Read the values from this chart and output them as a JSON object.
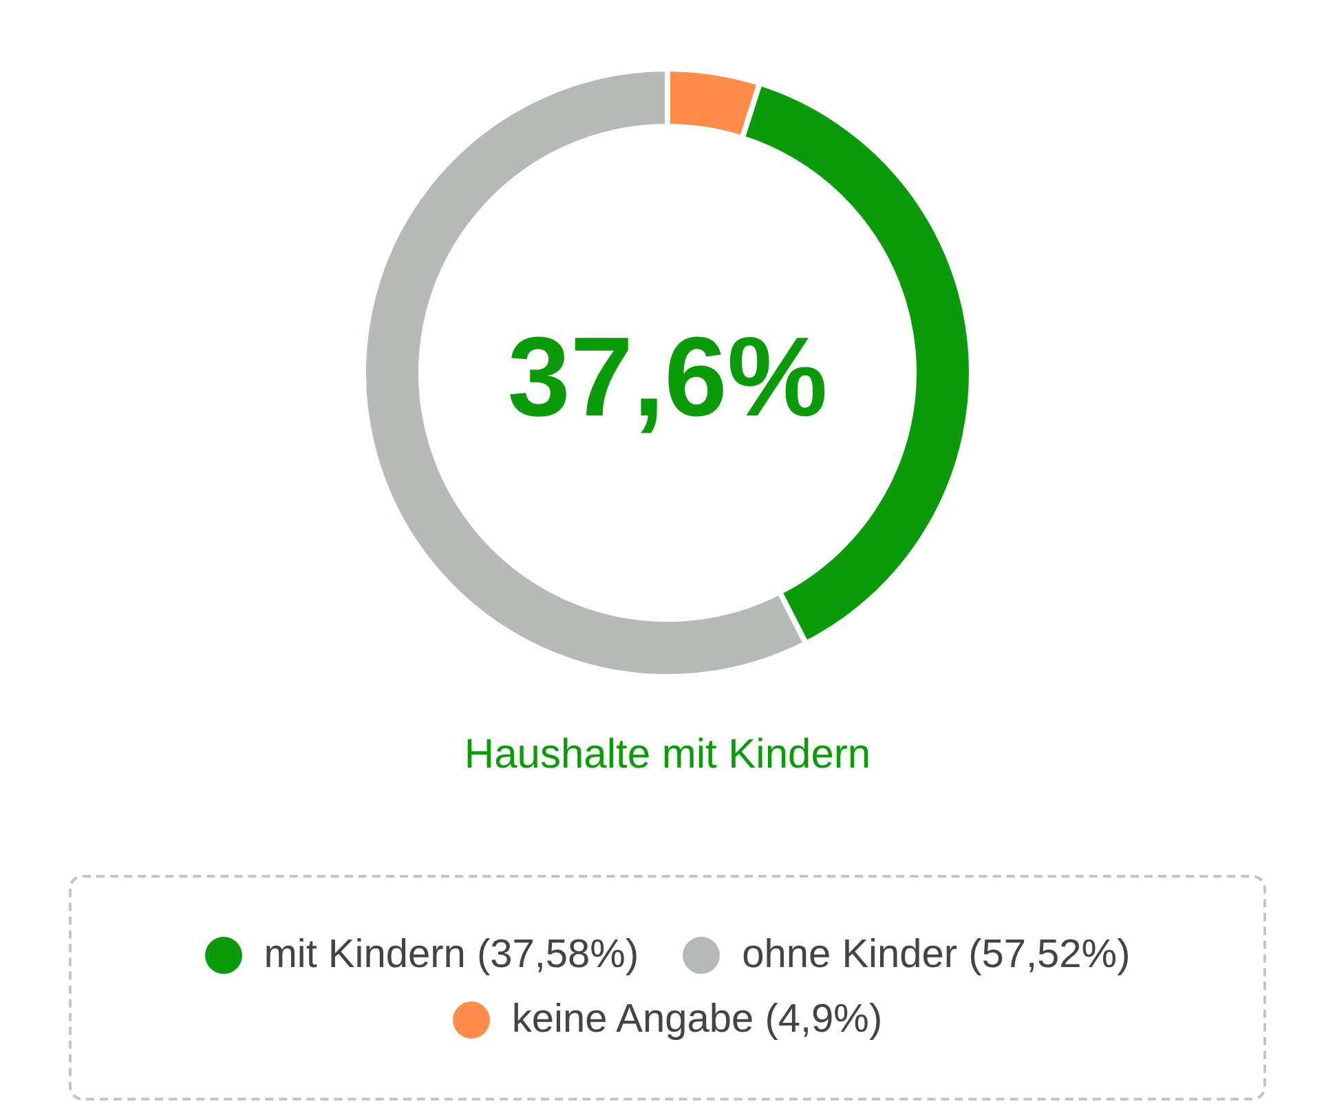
{
  "chart_data": {
    "type": "donut",
    "categories": [
      "mit Kindern (37,58%)",
      "ohne Kinder (57,52%)",
      "keine Angabe (4,9%)"
    ],
    "values": [
      37.58,
      57.52,
      4.9
    ],
    "colors": [
      "#0a9a0a",
      "#b5bab6",
      "#ff8c4b"
    ],
    "annotations": [
      "37,6%"
    ],
    "subtitle": "Haushalte mit Kindern",
    "legend": "bottom"
  }
}
